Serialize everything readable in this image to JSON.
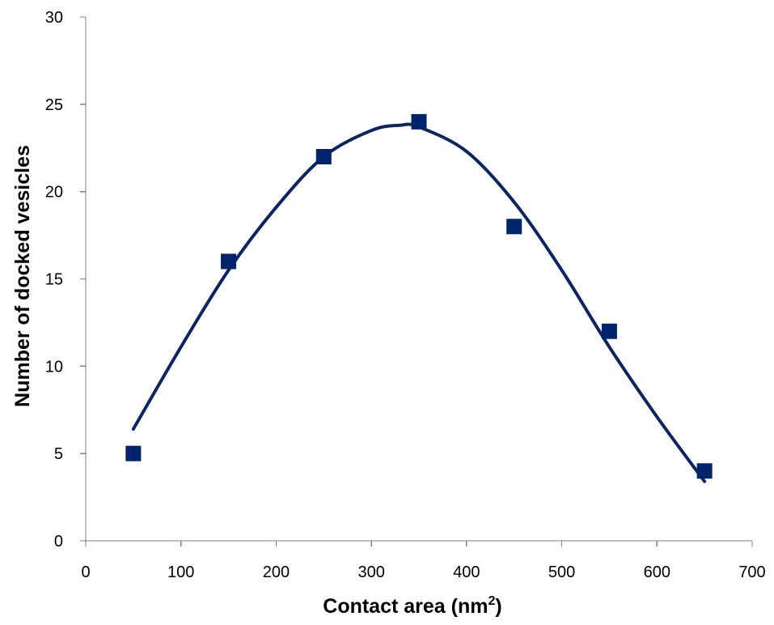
{
  "chart_data": {
    "type": "scatter",
    "xlabel": "Contact  area (nm",
    "xlabel_superscript": "2",
    "xlabel_suffix": ")",
    "ylabel": "Number of docked vesicles",
    "xlim": [
      0,
      700
    ],
    "ylim": [
      0,
      30
    ],
    "xticks": [
      0,
      100,
      200,
      300,
      400,
      500,
      600,
      700
    ],
    "yticks": [
      0,
      5,
      10,
      15,
      20,
      25,
      30
    ],
    "grid": false,
    "legend": false,
    "series": [
      {
        "marker": "square",
        "x": [
          50,
          150,
          250,
          350,
          450,
          550,
          650
        ],
        "y": [
          5,
          16,
          22,
          24,
          18,
          12,
          4
        ]
      }
    ],
    "trendline": {
      "style": "smooth curve",
      "x": [
        50,
        100,
        150,
        200,
        250,
        300,
        330,
        350,
        400,
        450,
        500,
        550,
        600,
        650
      ],
      "y": [
        6.4,
        11.1,
        15.5,
        19.1,
        22.0,
        23.5,
        23.8,
        23.7,
        22.3,
        19.4,
        15.5,
        11.1,
        7.1,
        3.4
      ]
    },
    "colors": {
      "marker": "#00246b",
      "line": "#0c2461",
      "axis": "#7f7f7f"
    }
  }
}
